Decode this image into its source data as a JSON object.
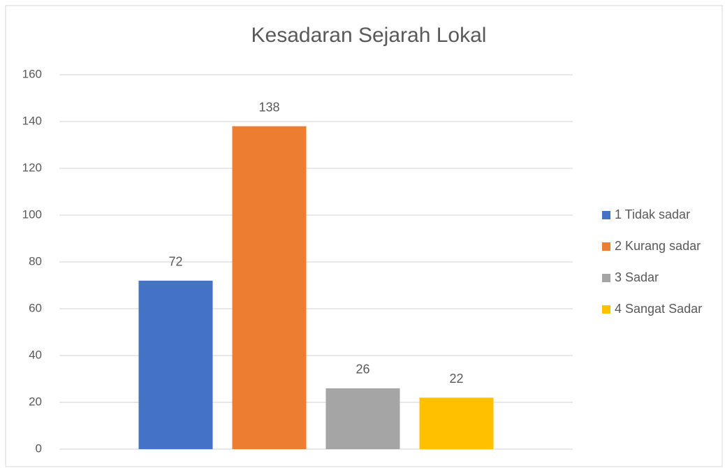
{
  "chart_data": {
    "type": "bar",
    "title": "Kesadaran Sejarah Lokal",
    "categories": [
      null
    ],
    "series": [
      {
        "name": "1 Tidak sadar",
        "color": "#4472c4",
        "values": [
          72
        ]
      },
      {
        "name": "2 Kurang sadar",
        "color": "#ed7d31",
        "values": [
          138
        ]
      },
      {
        "name": "3 Sadar",
        "color": "#a5a5a5",
        "values": [
          26
        ]
      },
      {
        "name": "4 Sangat Sadar",
        "color": "#ffc000",
        "values": [
          22
        ]
      }
    ],
    "ylim": [
      0,
      160
    ],
    "yticks": [
      0,
      20,
      40,
      60,
      80,
      100,
      120,
      140,
      160
    ],
    "grid": true,
    "legend": "right",
    "data_labels": true
  }
}
